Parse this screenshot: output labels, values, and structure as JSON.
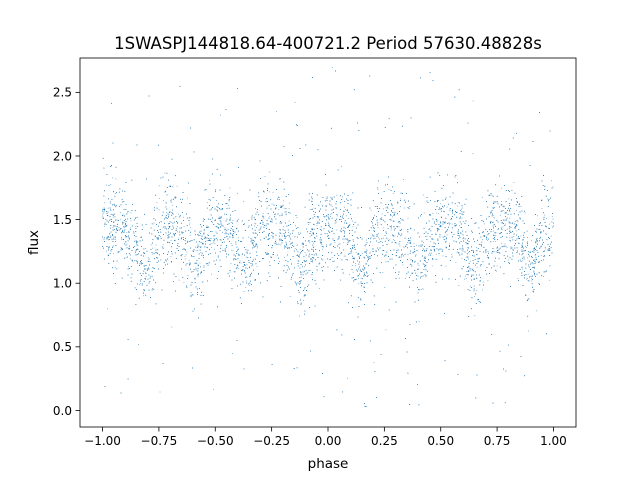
{
  "chart_data": {
    "type": "scatter",
    "title": "1SWASPJ144818.64-400721.2 Period 57630.48828s",
    "xlabel": "phase",
    "ylabel": "flux",
    "xlim": [
      -1.1,
      1.1
    ],
    "ylim": [
      -0.13,
      2.77
    ],
    "grid": false,
    "marker_color": "#1f77b4",
    "x_ticks": [
      -1.0,
      -0.75,
      -0.5,
      -0.25,
      0.0,
      0.25,
      0.5,
      0.75,
      1.0
    ],
    "x_tick_labels": [
      "−1.00",
      "−0.75",
      "−0.50",
      "−0.25",
      "0.00",
      "0.25",
      "0.50",
      "0.75",
      "1.00"
    ],
    "y_ticks": [
      0.0,
      0.5,
      1.0,
      1.5,
      2.0,
      2.5
    ],
    "y_tick_labels": [
      "0.0",
      "0.5",
      "1.0",
      "1.5",
      "2.0",
      "2.5"
    ],
    "series": [
      {
        "phase_range": [
          -1.0,
          1.0
        ],
        "approx_point_count": 9000,
        "flux_mean": 1.3,
        "flux_modulation_amplitude": 0.13,
        "minima_phases": [
          -0.81,
          -0.59,
          -0.37,
          -0.12,
          0.15,
          0.4,
          0.65,
          0.9
        ],
        "flux_range": [
          0.0,
          2.7
        ]
      }
    ]
  }
}
